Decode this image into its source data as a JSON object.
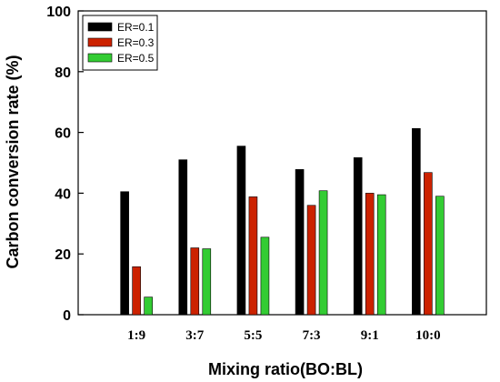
{
  "chart_data": {
    "type": "bar",
    "title": "",
    "xlabel": "Mixing ratio(BO:BL)",
    "ylabel": "Carbon conversion rate (%)",
    "categories": [
      "1:9",
      "3:7",
      "5:5",
      "7:3",
      "9:1",
      "10:0"
    ],
    "ylim": [
      0,
      100
    ],
    "yticks": [
      0,
      20,
      40,
      60,
      80,
      100
    ],
    "grid": false,
    "legend_position": "top-left",
    "series": [
      {
        "name": "ER=0.1",
        "color": "#000000",
        "values": [
          40.5,
          51,
          55.5,
          47.8,
          51.7,
          61.3
        ]
      },
      {
        "name": "ER=0.3",
        "color": "#cc2200",
        "values": [
          15.8,
          22,
          38.8,
          36,
          40,
          46.8
        ]
      },
      {
        "name": "ER=0.5",
        "color": "#33cc33",
        "values": [
          5.8,
          21.7,
          25.5,
          40.8,
          39.5,
          39
        ]
      }
    ]
  }
}
